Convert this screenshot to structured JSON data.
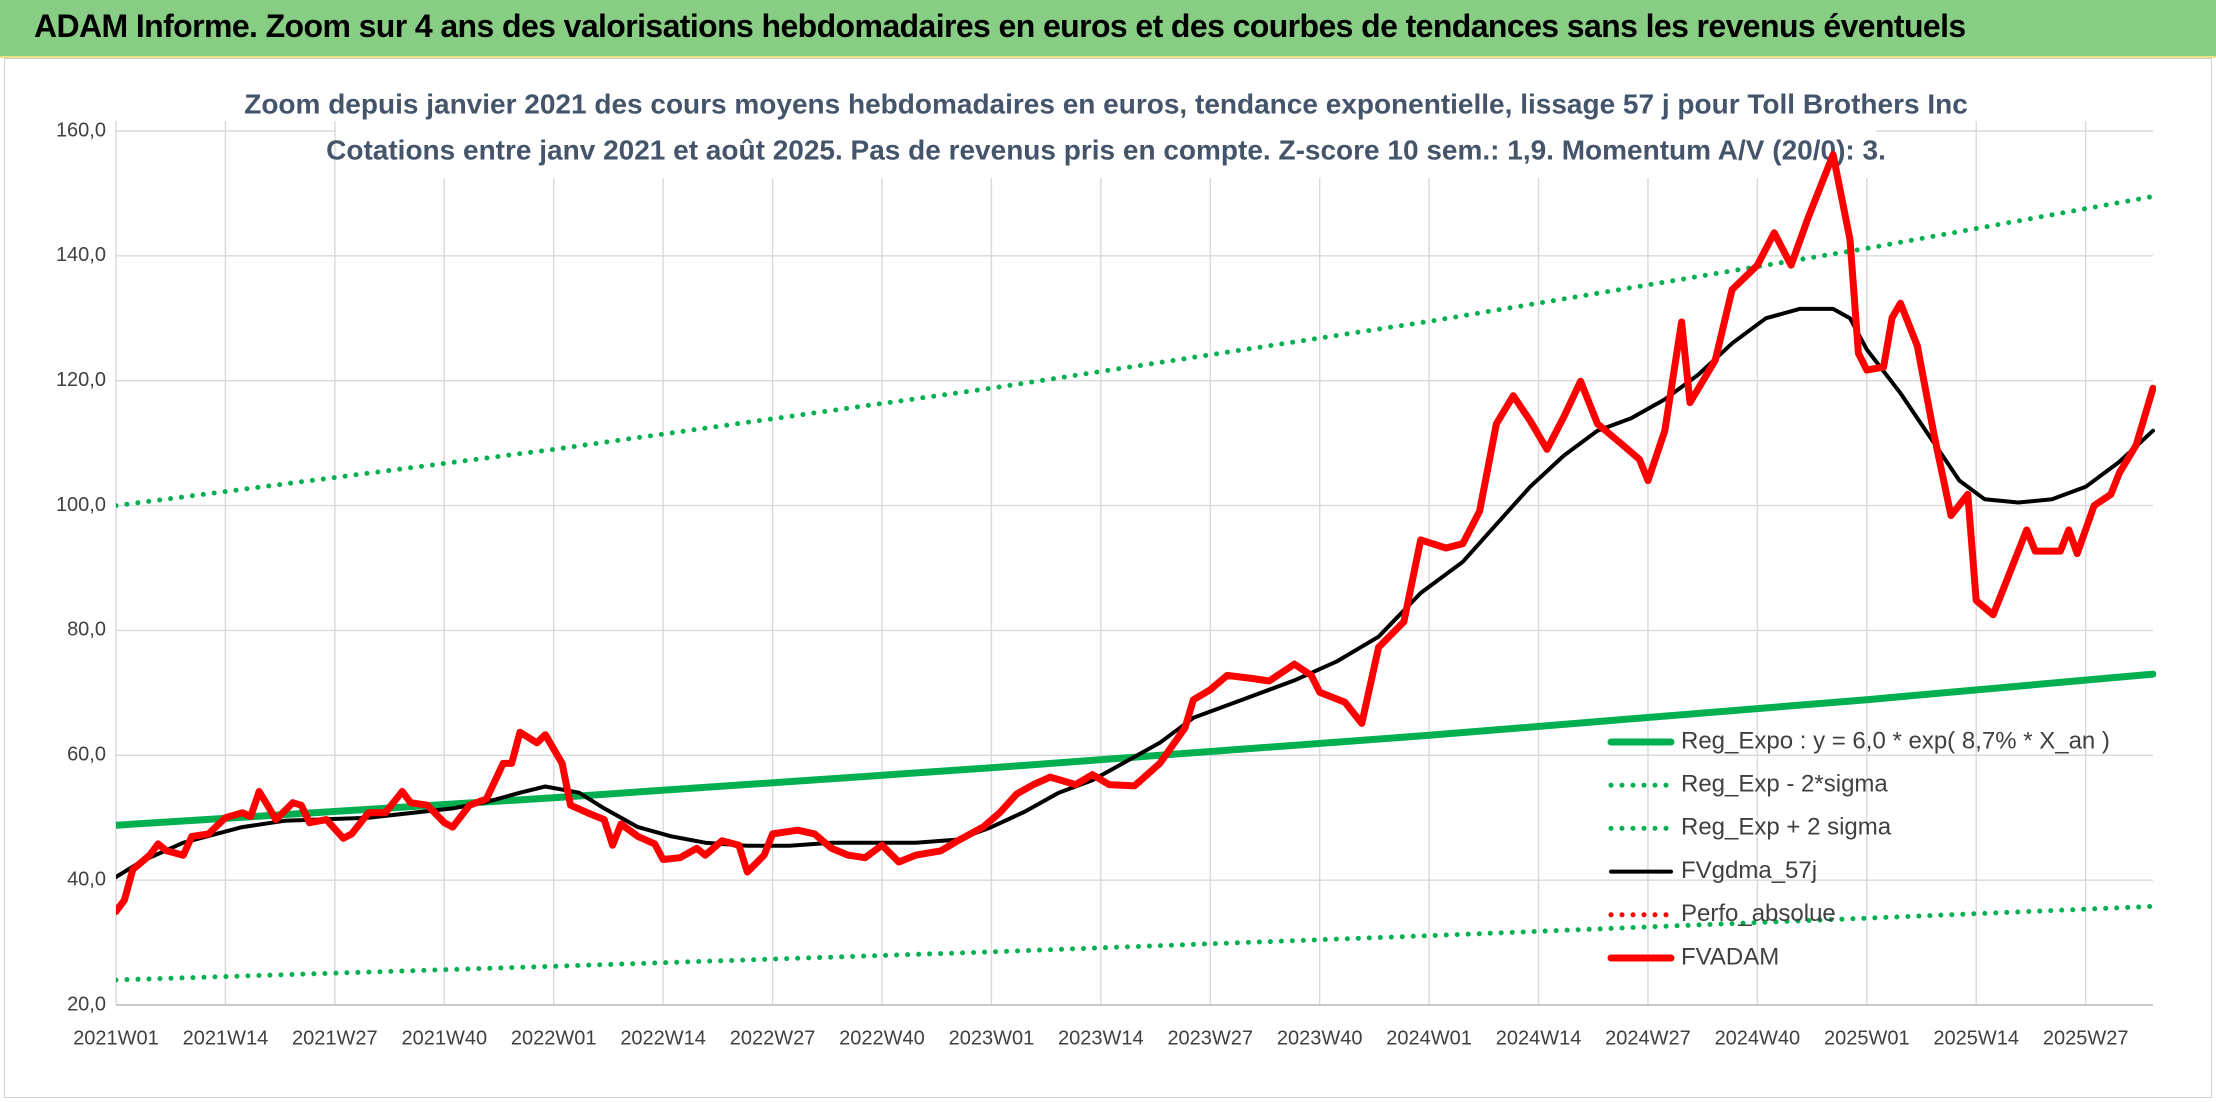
{
  "header": {
    "title": "ADAM Informe. Zoom sur 4 ans des valorisations hebdomadaires en euros et des courbes de tendances sans les revenus éventuels"
  },
  "chart_data": {
    "type": "line",
    "title": "Zoom depuis janvier 2021 des cours moyens hebdomadaires en euros, tendance exponentielle, lissage 57 j pour Toll Brothers Inc",
    "subtitle": "Cotations entre janv 2021 et août 2025. Pas de revenus pris en compte. Z-score 10 sem.: 1,9. Momentum A/V (20/0): 3.",
    "xlim": [
      0,
      242
    ],
    "xticks": [
      {
        "value": 0,
        "label": "2021W01"
      },
      {
        "value": 13,
        "label": "2021W14"
      },
      {
        "value": 26,
        "label": "2021W27"
      },
      {
        "value": 39,
        "label": "2021W40"
      },
      {
        "value": 52,
        "label": "2022W01"
      },
      {
        "value": 65,
        "label": "2022W14"
      },
      {
        "value": 78,
        "label": "2022W27"
      },
      {
        "value": 91,
        "label": "2022W40"
      },
      {
        "value": 104,
        "label": "2023W01"
      },
      {
        "value": 117,
        "label": "2023W14"
      },
      {
        "value": 130,
        "label": "2023W27"
      },
      {
        "value": 143,
        "label": "2023W40"
      },
      {
        "value": 156,
        "label": "2024W01"
      },
      {
        "value": 169,
        "label": "2024W14"
      },
      {
        "value": 182,
        "label": "2024W27"
      },
      {
        "value": 195,
        "label": "2024W40"
      },
      {
        "value": 208,
        "label": "2025W01"
      },
      {
        "value": 221,
        "label": "2025W14"
      },
      {
        "value": 234,
        "label": "2025W27"
      }
    ],
    "ylim": [
      20,
      160
    ],
    "yticks": [
      {
        "value": 20,
        "label": "20,0"
      },
      {
        "value": 40,
        "label": "40,0"
      },
      {
        "value": 60,
        "label": "60,0"
      },
      {
        "value": 80,
        "label": "80,0"
      },
      {
        "value": 100,
        "label": "100,0"
      },
      {
        "value": 120,
        "label": "120,0"
      },
      {
        "value": 140,
        "label": "140,0"
      },
      {
        "value": 160,
        "label": "160,0"
      }
    ],
    "grid": true,
    "legend": "bottom-right",
    "series": [
      {
        "name": "Reg_Expo : y = 6,0 * exp( 8,7% *  X_an )",
        "color": "#00b050",
        "style": "solid",
        "x": [
          0,
          52,
          104,
          156,
          208,
          242
        ],
        "values": [
          48.8,
          53.2,
          58.0,
          63.2,
          68.9,
          73.0
        ]
      },
      {
        "name": "Reg_Exp - 2*sigma",
        "color": "#00b050",
        "style": "dotted",
        "x": [
          0,
          52,
          104,
          156,
          208,
          242
        ],
        "values": [
          24.0,
          26.2,
          28.5,
          31.1,
          33.9,
          35.8
        ]
      },
      {
        "name": "Reg_Exp + 2 sigma",
        "color": "#00b050",
        "style": "dotted",
        "x": [
          0,
          52,
          104,
          156,
          208,
          242
        ],
        "values": [
          100.0,
          109.0,
          118.8,
          129.5,
          141.2,
          149.5
        ]
      },
      {
        "name": "FVgdma_57j",
        "color": "#000000",
        "style": "solid",
        "x": [
          0,
          3,
          8,
          15,
          20,
          30,
          40,
          44,
          48,
          51,
          55,
          58,
          62,
          66,
          70,
          75,
          80,
          85,
          95,
          100,
          104,
          108,
          112,
          116,
          120,
          124,
          128,
          134,
          140,
          145,
          150,
          155,
          160,
          164,
          168,
          172,
          176,
          180,
          184,
          188,
          192,
          196,
          200,
          204,
          206,
          208,
          212,
          216,
          219,
          222,
          226,
          230,
          234,
          238,
          242
        ],
        "values": [
          40.5,
          43,
          46,
          48.5,
          49.5,
          50,
          51.5,
          52.5,
          54,
          55,
          54,
          51.5,
          48.5,
          47,
          46,
          45.5,
          45.5,
          46,
          46,
          46.5,
          48.5,
          51,
          54,
          56,
          59,
          62,
          66,
          69,
          72,
          75,
          79,
          86,
          91,
          97,
          103,
          108,
          112,
          114,
          117,
          121,
          126,
          130,
          131.5,
          131.5,
          130,
          125,
          118,
          110,
          104,
          101,
          100.5,
          101,
          103,
          107,
          112
        ]
      },
      {
        "name": "Perfo_absolue",
        "color": "#ff0000",
        "style": "dotted",
        "x": [],
        "values": []
      },
      {
        "name": "FVADAM",
        "color": "#ff0000",
        "style": "solid",
        "x": [
          0,
          1,
          2,
          4,
          5,
          6,
          8,
          9,
          11,
          13,
          15,
          16,
          17,
          18,
          19,
          21,
          22,
          23,
          25,
          27,
          28,
          30,
          32,
          34,
          35,
          37,
          39,
          40,
          42,
          44,
          46,
          47,
          48,
          50,
          51,
          53,
          54,
          56,
          58,
          59,
          60,
          62,
          64,
          65,
          67,
          69,
          70,
          72,
          74,
          75,
          77,
          78,
          81,
          83,
          85,
          87,
          89,
          91,
          93,
          95,
          98,
          100,
          103,
          105,
          107,
          109,
          111,
          114,
          116,
          118,
          121,
          124,
          127,
          128,
          130,
          132,
          135,
          137,
          140,
          142,
          143,
          146,
          148,
          150,
          153,
          155,
          158,
          160,
          162,
          164,
          166,
          168,
          170,
          172,
          174,
          176,
          179,
          181,
          182,
          184,
          186,
          187,
          190,
          192,
          195,
          197,
          199,
          201,
          203,
          204,
          206,
          207,
          208,
          210,
          211,
          212,
          214,
          216,
          218,
          220,
          221,
          223,
          225,
          227,
          228,
          231,
          232,
          233,
          235,
          237,
          238,
          240,
          242
        ],
        "values": [
          35.0,
          36.8,
          41.7,
          44.0,
          45.8,
          44.7,
          44.0,
          47.0,
          47.4,
          50.0,
          50.8,
          50.2,
          54.2,
          52.0,
          49.7,
          52.4,
          52.0,
          49.2,
          49.7,
          46.7,
          47.4,
          50.8,
          50.8,
          54.2,
          52.4,
          52.0,
          49.2,
          48.5,
          52.0,
          53.0,
          58.7,
          58.7,
          63.7,
          62.0,
          63.3,
          58.7,
          52.0,
          50.8,
          49.7,
          45.6,
          49.0,
          47.0,
          45.8,
          43.3,
          43.6,
          45.1,
          44.0,
          46.3,
          45.6,
          41.3,
          44.0,
          47.4,
          48.0,
          47.4,
          45.1,
          44.0,
          43.6,
          45.6,
          42.9,
          44.0,
          44.7,
          46.3,
          48.5,
          50.8,
          53.8,
          55.3,
          56.5,
          55.3,
          56.9,
          55.3,
          55.1,
          58.7,
          64.4,
          68.9,
          70.5,
          72.8,
          72.3,
          71.9,
          74.6,
          72.8,
          70.1,
          68.5,
          65.1,
          77.3,
          81.4,
          94.5,
          93.2,
          93.9,
          99.1,
          113.1,
          117.6,
          113.6,
          109.0,
          114.2,
          119.9,
          113.1,
          109.7,
          107.4,
          104.0,
          112.0,
          129.4,
          116.5,
          123.3,
          134.6,
          138.5,
          143.7,
          138.5,
          146.0,
          152.8,
          156.2,
          142.6,
          124.4,
          121.7,
          122.2,
          130.1,
          132.4,
          125.6,
          111.3,
          98.4,
          101.8,
          84.8,
          82.5,
          89.3,
          96.1,
          92.7,
          92.7,
          96.1,
          92.3,
          100.0,
          101.8,
          105.2,
          109.7,
          118.8
        ]
      }
    ]
  }
}
